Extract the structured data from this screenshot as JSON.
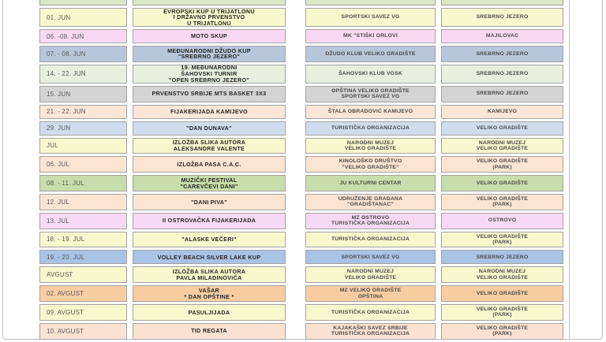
{
  "page": {
    "frame_border_color": "#bdbdbd",
    "top_partial_row": {
      "color": "#d9e7c6"
    }
  },
  "table": {
    "rows": [
      {
        "date": "01. JUN",
        "event": [
          "EVROPSKI KUP U TRIJATLONU",
          "I DRŽAVNO PRVENSTVO",
          "U TRIJATLONU"
        ],
        "organizer": [
          "SPORTSKI SAVEZ VG"
        ],
        "location": [
          "SREBRNO JEZERO"
        ],
        "color": "#f8f8cf"
      },
      {
        "date": "06. -08. JUN",
        "event": [
          "MOTO SKUP"
        ],
        "organizer": [
          "MK \"STIŠKI ORLOVI"
        ],
        "location": [
          "MAJILOVAC"
        ],
        "color": "#f9d9f2"
      },
      {
        "date": "07. - 08. JUN",
        "event": [
          "MEĐUNARODNI DŽUDO KUP",
          "\"SREBRNO JEZERO\""
        ],
        "organizer": [
          "DŽUDO KLUB VELIKO GRADIŠTE"
        ],
        "location": [
          "SREBRNO JEZERO"
        ],
        "color": "#b7c6db"
      },
      {
        "date": "14. - 22. JUN",
        "event": [
          "19. MEĐUNARODNI",
          "ŠAHOVSKI TURNIR",
          "\"OPEN SREBRNO JEZERO\""
        ],
        "organizer": [
          "ŠAHOVSKI KLUB VGSK"
        ],
        "location": [
          "SREBRNO JEZERO"
        ],
        "color": "#e8efdf"
      },
      {
        "date": "15. JUN",
        "event": [
          "PRVENSTVO SRBIJE MTS BASKET 3X3"
        ],
        "organizer": [
          "OPŠTINA VELIKO GRADIŠTE",
          "SPORTSKI SAVEZ VG"
        ],
        "location": [
          "SREBRNO JEZERO"
        ],
        "color": "#d4d4d4"
      },
      {
        "date": "21. - 22. JUN",
        "event": [
          "FIJAKERIJADA KAMIJEVO"
        ],
        "organizer": [
          "ŠTALA OBRADOVIĆ KAMIJEVO"
        ],
        "location": [
          "KAMIJEVO"
        ],
        "color": "#fce6d5"
      },
      {
        "date": "29. JUN",
        "event": [
          "\"DAN DUNAVA\""
        ],
        "organizer": [
          "TURISTIČKA ORGANIZACIJA"
        ],
        "location": [
          "VELIKO GRADIŠTE"
        ],
        "color": "#d0dcee"
      },
      {
        "date": "JUL",
        "event": [
          "IZLOŽBA SLIKA AUTORA",
          "ALEKSANDRE VALENTE"
        ],
        "organizer": [
          "NARODNI MUZEJ",
          "VELIKO GRADIŠTE"
        ],
        "location": [
          "NARODNI MUZEJ",
          "VELIKO GRADIŠTE"
        ],
        "color": "#f8f8cf"
      },
      {
        "date": "06. JUL",
        "event": [
          "IZLOŽBA PASA  C.A.C."
        ],
        "organizer": [
          "KINOLOŠKO DRUŠTVO",
          "\"VELIKO GRADIŠTE\""
        ],
        "location": [
          "VELIKO GRADIŠTE",
          "(PARK)"
        ],
        "color": "#fce4d2"
      },
      {
        "date": "08. - 11. JUL",
        "event": [
          "MUZIČKI FESTIVAL",
          "\"CAREVČEVI DANI\""
        ],
        "organizer": [
          "JU KULTURNI CENTAR"
        ],
        "location": [
          "VELIKO GRADIŠTE"
        ],
        "color": "#c9dcab"
      },
      {
        "date": "12. JUL",
        "event": [
          "\"DANI PIVA\""
        ],
        "organizer": [
          "UDRUŽENJE GRAĐANA",
          "\"GRADIŠTANAC\""
        ],
        "location": [
          "VELIKO GRADIŠTE",
          "(PARK)"
        ],
        "color": "#fce4d2"
      },
      {
        "date": "13. JUL",
        "event": [
          "II OSTROVAČKA FIJAKERIJADA"
        ],
        "organizer": [
          "MZ OSTROVO",
          "TURISTIČKA ORGANIZACIJA"
        ],
        "location": [
          "OSTROVO"
        ],
        "color": "#f8d9f3"
      },
      {
        "date": "18. - 19. JUL",
        "event": [
          "\"ALASKE VEČERI\""
        ],
        "organizer": [
          "TURISTIČKA ORGANIZACIJA"
        ],
        "location": [
          "VELIKO GRADIŠTE",
          "(PARK)"
        ],
        "color": "#f8f8cf"
      },
      {
        "date": "19. - 20. JUL",
        "event": [
          "VOLLEY BEACH SILVER LAKE KUP"
        ],
        "organizer": [
          "SPORTSKI SAVEZ VG"
        ],
        "location": [
          "SREBRNO JEZERO"
        ],
        "color": "#a9c3e5"
      },
      {
        "date": "AVGUST",
        "event": [
          "IZLOŽBA SLIKA AUTORA",
          "PAVLA MILADINOVIĆA"
        ],
        "organizer": [
          "NARODNI MUZEJ",
          "VELIKO GRADIŠTE"
        ],
        "location": [
          "NARODNI MUZEJ",
          "VELIKO GRADIŠTE"
        ],
        "color": "#f8f8cf"
      },
      {
        "date": "02. AVGUST",
        "event": [
          "VAŠAR",
          "* DAN OPŠTINE *"
        ],
        "organizer": [
          "MZ VELIKO GRADIŠTE",
          "OPŠTINA"
        ],
        "location": [
          "VELIKO GRADIŠTE"
        ],
        "color": "#f9cda2"
      },
      {
        "date": "09. AVGUST",
        "event": [
          "PASULJIJADA"
        ],
        "organizer": [
          "TURISTIČKA ORGANIZACIJA"
        ],
        "location": [
          "VELIKO GRADIŠTE",
          "(PARK)"
        ],
        "color": "#f8f8cf"
      },
      {
        "date": "10. AVGUST",
        "event": [
          "TID REGATA"
        ],
        "organizer": [
          "KAJAKAŠKI SAVEZ SRBIJE",
          "TURISTIČKA ORGANIZACIJA"
        ],
        "location": [
          "VELIKO GRADIŠTE",
          "(PARK)"
        ],
        "color": "#fbe2d2"
      }
    ]
  }
}
